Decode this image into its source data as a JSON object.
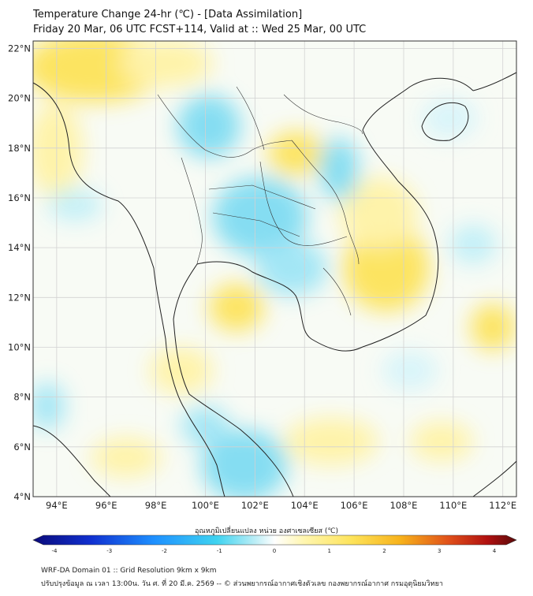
{
  "title_line1": "Temperature Change 24-hr (℃) - [Data Assimilation]",
  "title_line2": "Friday 20 Mar, 06 UTC FCST+114, Valid at :: Wed 25 Mar, 00 UTC",
  "lat_labels": [
    "22°N",
    "20°N",
    "18°N",
    "16°N",
    "14°N",
    "12°N",
    "10°N",
    "8°N",
    "6°N",
    "4°N"
  ],
  "lon_labels": [
    "94°E",
    "96°E",
    "98°E",
    "100°E",
    "102°E",
    "104°E",
    "106°E",
    "108°E",
    "110°E",
    "112°E"
  ],
  "colorbar": {
    "title": "อุณหภูมิเปลี่ยนแปลง หน่วย องศาเซลเซียส (℃)",
    "ticks": [
      "-4",
      "-3",
      "-2",
      "-1",
      "0",
      "1",
      "2",
      "3",
      "4"
    ],
    "colors": [
      "#0a0a7a",
      "#1030d0",
      "#1e90ff",
      "#3fd3f0",
      "#a9ecf5",
      "#ffffff",
      "#fff6b0",
      "#fde35a",
      "#f7b21b",
      "#e0501a",
      "#b01010",
      "#5a0a0a"
    ]
  },
  "footer_line1": "WRF-DA Domain 01 :: Grid Resolution 9km x 9km",
  "footer_line2": "ปรับปรุงข้อมูล ณ เวลา 13:00น. วัน ศ. ที่ 20 มี.ค. 2569 -- © ส่วนพยากรณ์อากาศเชิงตัวเลข กองพยากรณ์อากาศ กรมอุตุนิยมวิทยา",
  "colors": {
    "warm_light": "#fff3a6",
    "warm": "#fde25a",
    "cool_light": "#c9f1f8",
    "cool": "#7fdcf2",
    "coast": "#222222",
    "grid": "#cfcfcf"
  }
}
